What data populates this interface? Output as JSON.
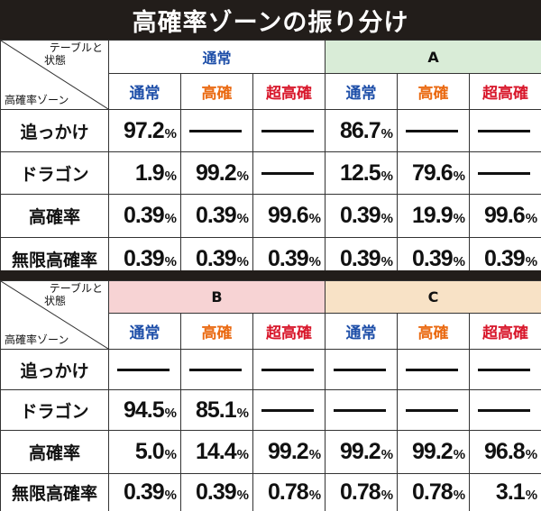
{
  "title": "高確率ゾーンの振り分け",
  "corner": {
    "top_line1": "テーブルと",
    "top_line2": "状態",
    "bottom": "高確率ゾーン"
  },
  "sub_headers": [
    "通常",
    "高確",
    "超高確",
    "通常",
    "高確",
    "超高確"
  ],
  "tables": [
    {
      "groups": [
        "通常",
        "A"
      ],
      "rows": [
        {
          "label": "追っかけ",
          "cells": [
            [
              "97.2",
              "%"
            ],
            [
              "",
              "—"
            ],
            [
              "",
              "—"
            ],
            [
              "86.7",
              "%"
            ],
            [
              "",
              "—"
            ],
            [
              "",
              "—"
            ]
          ]
        },
        {
          "label": "ドラゴン",
          "cells": [
            [
              "1.9",
              "%"
            ],
            [
              "99.2",
              "%"
            ],
            [
              "",
              "—"
            ],
            [
              "12.5",
              "%"
            ],
            [
              "79.6",
              "%"
            ],
            [
              "",
              "—"
            ]
          ]
        },
        {
          "label": "高確率",
          "cells": [
            [
              "0.39",
              "%"
            ],
            [
              "0.39",
              "%"
            ],
            [
              "99.6",
              "%"
            ],
            [
              "0.39",
              "%"
            ],
            [
              "19.9",
              "%"
            ],
            [
              "99.6",
              "%"
            ]
          ]
        },
        {
          "label": "無限高確率",
          "cells": [
            [
              "0.39",
              "%"
            ],
            [
              "0.39",
              "%"
            ],
            [
              "0.39",
              "%"
            ],
            [
              "0.39",
              "%"
            ],
            [
              "0.39",
              "%"
            ],
            [
              "0.39",
              "%"
            ]
          ]
        }
      ]
    },
    {
      "groups": [
        "B",
        "C"
      ],
      "rows": [
        {
          "label": "追っかけ",
          "cells": [
            [
              "",
              "—"
            ],
            [
              "",
              "—"
            ],
            [
              "",
              "—"
            ],
            [
              "",
              "—"
            ],
            [
              "",
              "—"
            ],
            [
              "",
              "—"
            ]
          ]
        },
        {
          "label": "ドラゴン",
          "cells": [
            [
              "94.5",
              "%"
            ],
            [
              "85.1",
              "%"
            ],
            [
              "",
              "—"
            ],
            [
              "",
              "—"
            ],
            [
              "",
              "—"
            ],
            [
              "",
              "—"
            ]
          ]
        },
        {
          "label": "高確率",
          "cells": [
            [
              "5.0",
              "%"
            ],
            [
              "14.4",
              "%"
            ],
            [
              "99.2",
              "%"
            ],
            [
              "99.2",
              "%"
            ],
            [
              "99.2",
              "%"
            ],
            [
              "96.8",
              "%"
            ]
          ]
        },
        {
          "label": "無限高確率",
          "cells": [
            [
              "0.39",
              "%"
            ],
            [
              "0.39",
              "%"
            ],
            [
              "0.78",
              "%"
            ],
            [
              "0.78",
              "%"
            ],
            [
              "0.78",
              "%"
            ],
            [
              "3.1",
              "%"
            ]
          ]
        }
      ]
    }
  ],
  "colors": {
    "title_bg": "#221d1a",
    "normal_blue": "#1d4ea8",
    "high_orange": "#ea6a12",
    "super_red": "#d8162a",
    "group_a_bg": "#d9ecd7",
    "group_b_bg": "#f7d3d4",
    "group_c_bg": "#f8e2c6"
  }
}
